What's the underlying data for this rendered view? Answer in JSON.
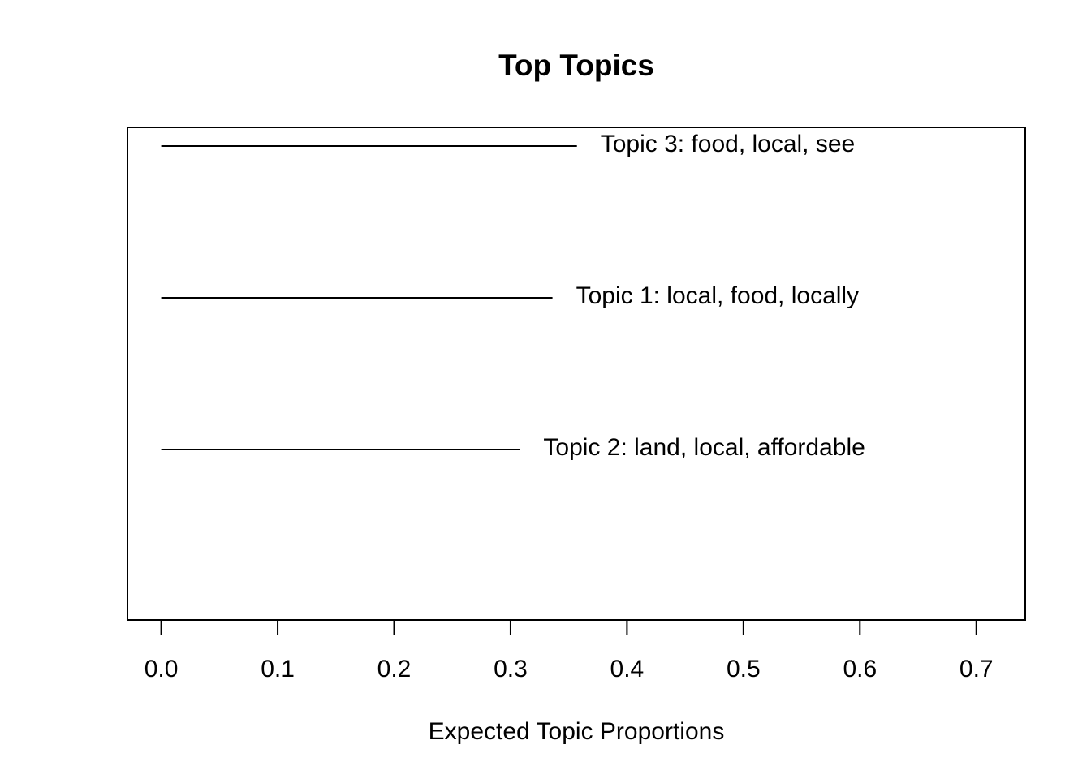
{
  "chart_data": {
    "type": "bar",
    "title": "Top Topics",
    "xlabel": "Expected Topic Proportions",
    "ylabel": "",
    "xlim": [
      -0.029,
      0.742
    ],
    "x_ticks": [
      0.0,
      0.1,
      0.2,
      0.3,
      0.4,
      0.5,
      0.6,
      0.7
    ],
    "x_tick_labels": [
      "0.0",
      "0.1",
      "0.2",
      "0.3",
      "0.4",
      "0.5",
      "0.6",
      "0.7"
    ],
    "orientation": "horizontal",
    "grid": false,
    "legend": "none",
    "colors": {
      "line": "#000000",
      "frame": "#000000",
      "background": "#ffffff"
    },
    "series": [
      {
        "label": "Topic 3: food, local, see",
        "value": 0.357
      },
      {
        "label": "Topic 1: local, food, locally",
        "value": 0.336
      },
      {
        "label": "Topic 2: land, local, affordable",
        "value": 0.308
      }
    ]
  }
}
